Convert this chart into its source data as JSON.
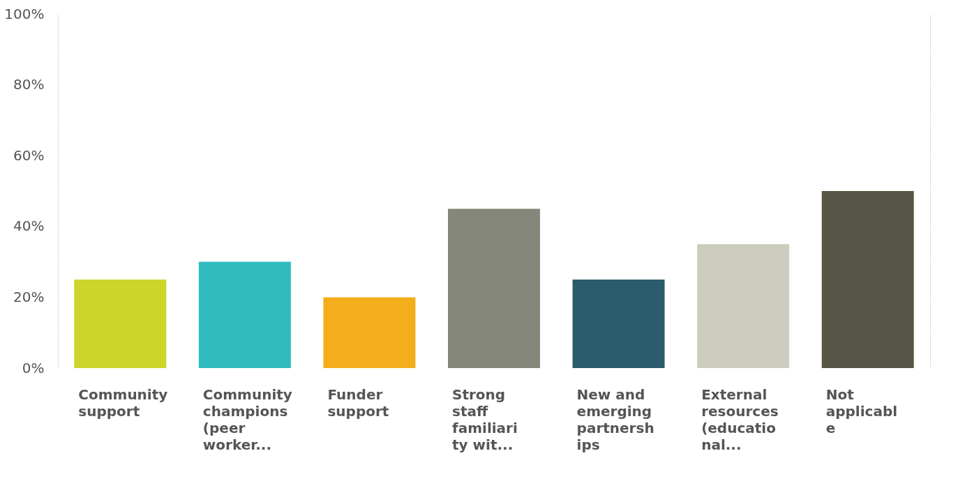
{
  "chart_data": {
    "type": "bar",
    "categories": [
      "Community\nsupport",
      "Community\nchampions\n(peer\nworker...",
      "Funder\nsupport",
      "Strong\nstaff\nfamiliari\nty wit...",
      "New and\nemerging\npartnersh\nips",
      "External\nresources\n(educatio\nnal...",
      "Not\napplicabl\ne"
    ],
    "values": [
      25,
      30,
      20,
      45,
      25,
      35,
      50
    ],
    "colors": [
      "#cdd42a",
      "#30bcbf",
      "#f4ad1b",
      "#85877a",
      "#2b5c6b",
      "#cdccbf",
      "#585646"
    ],
    "ylim": [
      0,
      100
    ],
    "yticks": [
      {
        "value": 0,
        "label": "0%"
      },
      {
        "value": 10,
        "label": null
      },
      {
        "value": 20,
        "label": "20%"
      },
      {
        "value": 30,
        "label": null
      },
      {
        "value": 40,
        "label": "40%"
      },
      {
        "value": 50,
        "label": null
      },
      {
        "value": 60,
        "label": "60%"
      },
      {
        "value": 70,
        "label": null
      },
      {
        "value": 80,
        "label": "80%"
      },
      {
        "value": 90,
        "label": null
      },
      {
        "value": 100,
        "label": "100%"
      }
    ],
    "grid": "y",
    "legend": false
  }
}
